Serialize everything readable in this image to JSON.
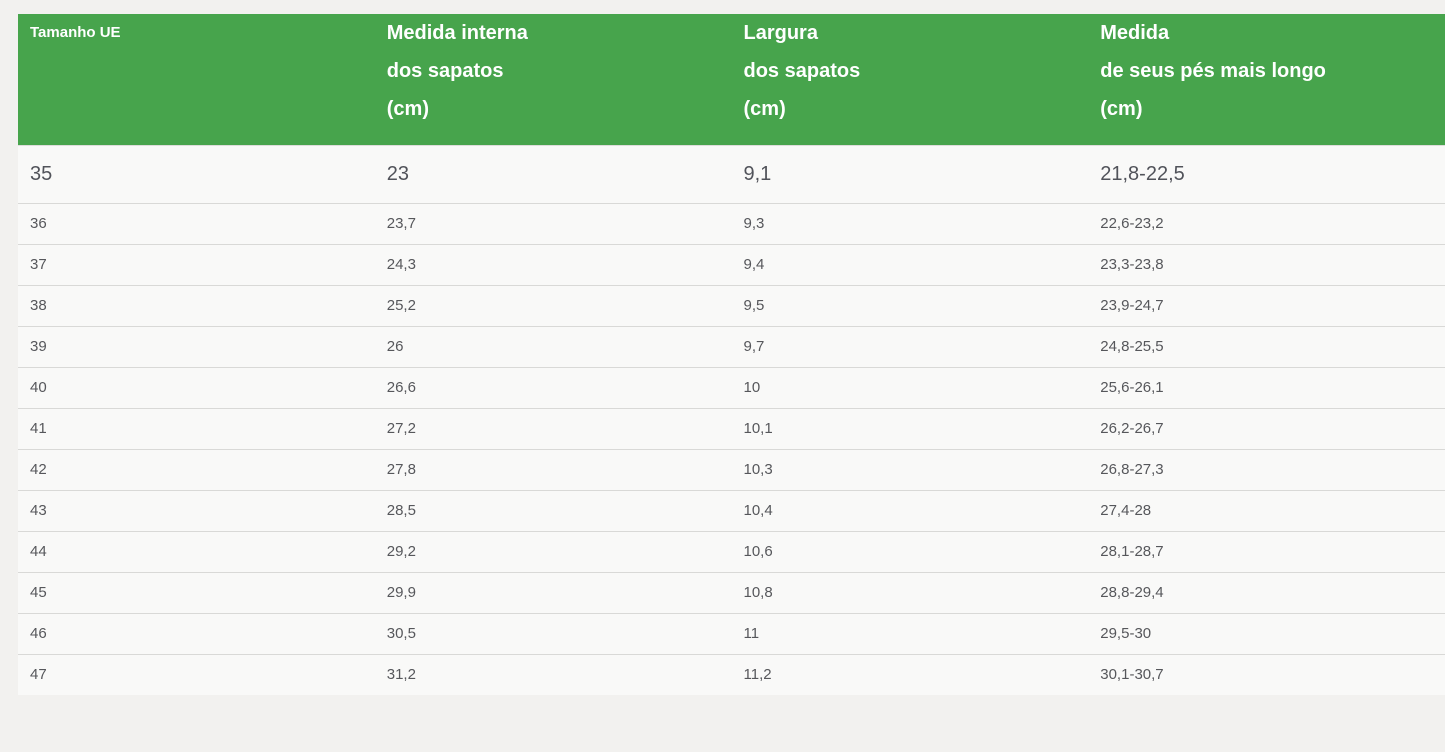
{
  "colors": {
    "page_background": "#f2f1ef",
    "header_background": "#47a44c",
    "header_text": "#ffffff",
    "row_background": "#f9f9f8",
    "cell_text": "#56575b",
    "divider": "#d9d9d7"
  },
  "table": {
    "columns": [
      {
        "id": "tamanho_ue",
        "label_lines": [
          "Tamanho UE"
        ]
      },
      {
        "id": "medida_interna",
        "label_lines": [
          "Medida interna",
          "dos sapatos",
          "(cm)"
        ]
      },
      {
        "id": "largura",
        "label_lines": [
          "Largura",
          "dos sapatos",
          "(cm)"
        ]
      },
      {
        "id": "medida_pes",
        "label_lines": [
          "Medida",
          "de seus pés mais longo",
          "(cm)"
        ]
      }
    ],
    "rows": [
      [
        "35",
        "23",
        "9,1",
        "21,8-22,5"
      ],
      [
        "36",
        "23,7",
        "9,3",
        "22,6-23,2"
      ],
      [
        "37",
        "24,3",
        "9,4",
        "23,3-23,8"
      ],
      [
        "38",
        "25,2",
        "9,5",
        "23,9-24,7"
      ],
      [
        "39",
        "26",
        "9,7",
        "24,8-25,5"
      ],
      [
        "40",
        "26,6",
        "10",
        "25,6-26,1"
      ],
      [
        "41",
        "27,2",
        "10,1",
        "26,2-26,7"
      ],
      [
        "42",
        "27,8",
        "10,3",
        "26,8-27,3"
      ],
      [
        "43",
        "28,5",
        "10,4",
        "27,4-28"
      ],
      [
        "44",
        "29,2",
        "10,6",
        "28,1-28,7"
      ],
      [
        "45",
        "29,9",
        "10,8",
        "28,8-29,4"
      ],
      [
        "46",
        "30,5",
        "11",
        "29,5-30"
      ],
      [
        "47",
        "31,2",
        "11,2",
        "30,1-30,7"
      ]
    ]
  }
}
